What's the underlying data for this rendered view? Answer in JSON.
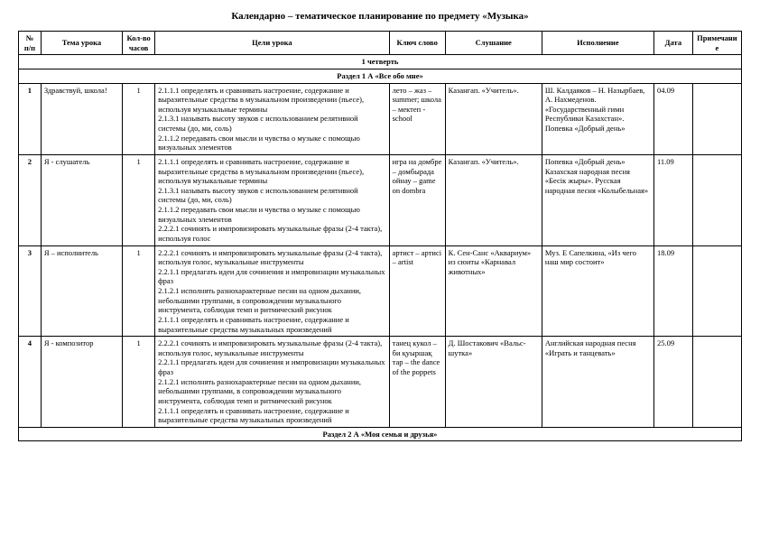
{
  "title": "Календарно – тематическое планирование по предмету «Музыка»",
  "headers": {
    "num": "№ п/п",
    "topic": "Тема урока",
    "hours": "Кол-во часов",
    "goals": "Цели урока",
    "keyword": "Ключ слово",
    "listening": "Слушание",
    "performance": "Исполнение",
    "date": "Дата",
    "note": "Примечание"
  },
  "quarter": "1 четверть",
  "section1": "Раздел 1 А «Все обо мне»",
  "section2": "Раздел 2 А «Моя семья и друзья»",
  "rows": [
    {
      "num": "1",
      "topic": "Здравствуй, школа!",
      "hours": "1",
      "goals": "2.1.1.1 определять и сравнивать настроение, содержание и выразительные средства в музыкальном произведении (пьесе), используя музыкальные термины\n2.1.3.1 называть высоту звуков с использованием релятивной системы (до, ми, соль)\n2.1.1.2 передавать свои мысли и чувства о музыке с помощью визуальных элементов",
      "keyword": "лето – жаз – summer; школа – мектеп - school",
      "listening": "Казангап. «Учитель».",
      "performance": "Ш. Калдаяков – Н. Назырбаев, А. Нахмеденов. «Государственный гимн Республики Казахстан». Попевка «Добрый день»",
      "date": "04.09",
      "note": ""
    },
    {
      "num": "2",
      "topic": "Я - слушатель",
      "hours": "1",
      "goals": "2.1.1.1 определять и сравнивать настроение, содержание и выразительные средства в музыкальном произведении (пьесе), используя музыкальные термины\n2.1.3.1 называть высоту звуков с использованием релятивной системы (до, ми, соль)\n2.1.1.2 передавать свои мысли и чувства о музыке с помощью визуальных элементов\n2.2.2.1 сочинять и импровизировать музыкальные фразы (2-4 такта), используя голос",
      "keyword": "игра на домбре – домбырада ойнау – game on dombra",
      "listening": "Казангап. «Учитель».",
      "performance": "Попевка «Добрый день» Казахская народная песня «Бесік жыры». Русская народная песня «Колыбельная»",
      "date": "11.09",
      "note": ""
    },
    {
      "num": "3",
      "topic": "Я – исполнитель",
      "hours": "1",
      "goals": "2.2.2.1 сочинять и импровизировать музыкальные фразы (2-4 такта), используя голос, музыкальные инструменты\n2.2.1.1 предлагать идеи для сочинения и импровизации музыкальных фраз\n2.1.2.1 исполнять разнохарактерные песни на одном дыхании, небольшими группами, в сопровождении музыкального инструмента, соблюдая темп и ритмический рисунок\n2.1.1.1 определять и сравнивать настроение, содержание и выразительные средства музыкальных произведений",
      "keyword": "артист – артисі – artist",
      "listening": "К. Сен-Санс «Аквариум» из сюиты «Карнавал животных»",
      "performance": "Муз. Е Сапелкина, «Из чего наш мир состоит»",
      "date": "18.09",
      "note": ""
    },
    {
      "num": "4",
      "topic": "Я - композитор",
      "hours": "1",
      "goals": "2.2.2.1 сочинять и импровизировать музыкальные фразы (2-4 такта), используя голос, музыкальные инструменты\n2.2.1.1 предлагать идеи для сочинения и импровизации музыкальных фраз\n2.1.2.1 исполнять разнохарактерные песни на одном дыхании, небольшими группами, в сопровождении музыкального инструмента, соблюдая темп и ритмический рисунок\n2.1.1.1 определять и сравнивать настроение, содержание и выразительные средства музыкальных произведений",
      "keyword": "танец кукол –би қуыршақ тар – the dance of the poppets",
      "listening": "Д. Шостакович «Вальс-шутка»",
      "performance": "Английская народная песня «Играть и танцевать»",
      "date": "25.09",
      "note": ""
    }
  ]
}
